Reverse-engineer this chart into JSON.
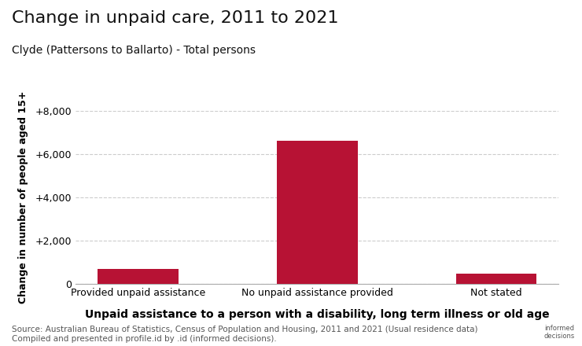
{
  "title": "Change in unpaid care, 2011 to 2021",
  "subtitle": "Clyde (Pattersons to Ballarto) - Total persons",
  "categories": [
    "Provided unpaid assistance",
    "No unpaid assistance provided",
    "Not stated"
  ],
  "values": [
    700,
    6600,
    450
  ],
  "bar_color": "#B71234",
  "ylabel": "Change in number of people aged 15+",
  "xlabel": "Unpaid assistance to a person with a disability, long term illness or old age",
  "ylim": [
    0,
    8000
  ],
  "yticks": [
    0,
    2000,
    4000,
    6000,
    8000
  ],
  "ytick_labels": [
    "0",
    "+2,000",
    "+4,000",
    "+6,000",
    "+8,000"
  ],
  "source_text": "Source: Australian Bureau of Statistics, Census of Population and Housing, 2011 and 2021 (Usual residence data)\nCompiled and presented in profile.id by .id (informed decisions).",
  "background_color": "#ffffff",
  "grid_color": "#cccccc",
  "bar_width": 0.45,
  "title_fontsize": 16,
  "subtitle_fontsize": 10,
  "ylabel_fontsize": 9,
  "xlabel_fontsize": 10,
  "tick_fontsize": 9,
  "source_fontsize": 7.5
}
